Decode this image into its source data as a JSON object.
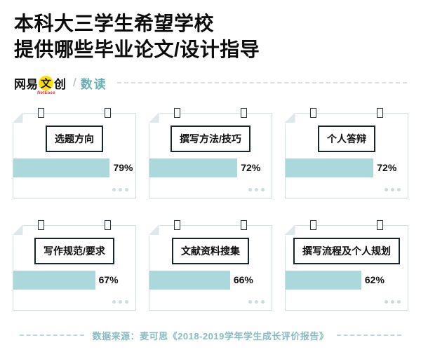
{
  "title": {
    "line1": "本科大三学生希望学校",
    "line2": "提供哪些毕业论文/设计指导"
  },
  "brand": {
    "prefix": "网易",
    "circled": "文",
    "suffix": "创",
    "netease": "NetEase",
    "separator": "/",
    "product": "数读"
  },
  "cards": [
    {
      "label": "选题方向",
      "value": 79,
      "percent_label": "79%"
    },
    {
      "label": "撰写方法/技巧",
      "value": 72,
      "percent_label": "72%"
    },
    {
      "label": "个人答辩",
      "value": 72,
      "percent_label": "72%"
    },
    {
      "label": "写作规范/要求",
      "value": 67,
      "percent_label": "67%"
    },
    {
      "label": "文献资料搜集",
      "value": 66,
      "percent_label": "66%"
    },
    {
      "label": "撰写流程及个人规划",
      "value": 62,
      "percent_label": "62%"
    }
  ],
  "footer": {
    "text": "数据来源：麦可思《2018-2019学年学生成长评价报告》"
  },
  "colors": {
    "bar_fill": "#abd8db",
    "accent_yellow": "#ffe000",
    "footer_text": "#87bcc2",
    "ink": "#101010"
  },
  "chart_data": {
    "type": "bar",
    "title": "本科大三学生希望学校提供哪些毕业论文/设计指导",
    "categories": [
      "选题方向",
      "撰写方法/技巧",
      "个人答辩",
      "写作规范/要求",
      "文献资料搜集",
      "撰写流程及个人规划"
    ],
    "values": [
      79,
      72,
      72,
      67,
      66,
      62
    ],
    "unit": "%",
    "xlim": [
      0,
      100
    ],
    "legend": "none",
    "grid": false,
    "layout": "2x3 grid of hanging cards, horizontal fill bars with value labels",
    "source": "数据来源：麦可思《2018-2019学年学生成长评价报告》"
  }
}
